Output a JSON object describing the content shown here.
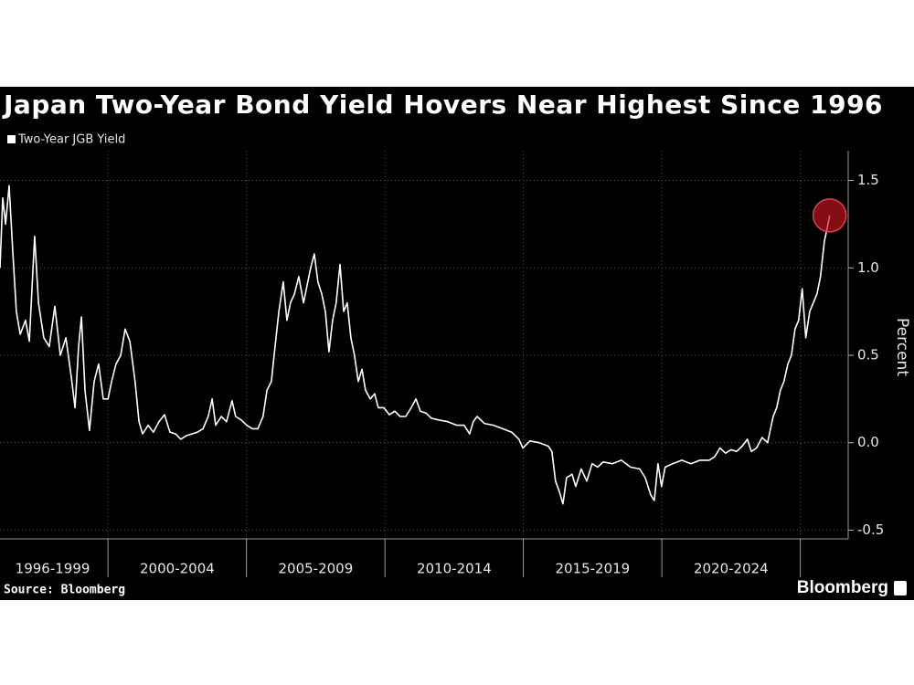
{
  "chart_data": {
    "type": "line",
    "title": "Japan Two-Year Bond Yield Hovers Near Highest Since 1996",
    "y_label": "Percent",
    "source": "Source: Bloomberg",
    "brand": "Bloomberg",
    "series": [
      {
        "name": "Two-Year JGB Yield",
        "color": "#ffffff",
        "values": [
          1.0,
          1.4,
          1.25,
          1.47,
          1.1,
          0.75,
          0.62,
          0.7,
          0.58,
          1.18,
          0.8,
          0.6,
          0.55,
          0.78,
          0.5,
          0.6,
          0.38,
          0.2,
          0.55,
          0.72,
          0.3,
          0.07,
          0.35,
          0.45,
          0.25,
          0.25,
          0.35,
          0.45,
          0.5,
          0.65,
          0.58,
          0.35,
          0.12,
          0.05,
          0.1,
          0.06,
          0.12,
          0.16,
          0.06,
          0.05,
          0.02,
          0.04,
          0.05,
          0.06,
          0.08,
          0.15,
          0.25,
          0.1,
          0.15,
          0.12,
          0.24,
          0.15,
          0.13,
          0.1,
          0.08,
          0.08,
          0.15,
          0.3,
          0.35,
          0.5,
          0.75,
          0.92,
          0.7,
          0.8,
          0.85,
          0.95,
          0.8,
          0.9,
          1.0,
          1.08,
          0.92,
          0.85,
          0.75,
          0.52,
          0.7,
          0.8,
          1.02,
          0.75,
          0.8,
          0.6,
          0.5,
          0.35,
          0.42,
          0.3,
          0.25,
          0.28,
          0.2,
          0.2,
          0.16,
          0.18,
          0.15,
          0.15,
          0.2,
          0.25,
          0.18,
          0.17,
          0.14,
          0.13,
          0.12,
          0.1,
          0.1,
          0.05,
          0.12,
          0.15,
          0.11,
          0.1,
          0.08,
          0.06,
          0.02,
          -0.03,
          0.01,
          0.0,
          -0.02,
          -0.05,
          -0.22,
          -0.28,
          -0.35,
          -0.2,
          -0.18,
          -0.25,
          -0.15,
          -0.22,
          -0.12,
          -0.14,
          -0.11,
          -0.12,
          -0.1,
          -0.14,
          -0.15,
          -0.2,
          -0.3,
          -0.33,
          -0.12,
          -0.25,
          -0.14,
          -0.12,
          -0.1,
          -0.12,
          -0.1,
          -0.1,
          -0.08,
          -0.03,
          -0.06,
          -0.04,
          -0.05,
          -0.02,
          0.02,
          -0.05,
          -0.03,
          0.03,
          0.0,
          0.15,
          0.2,
          0.3,
          0.35,
          0.45,
          0.5,
          0.65,
          0.7,
          0.88,
          0.6,
          0.75,
          0.8,
          0.85,
          0.95,
          1.15,
          1.25,
          1.3
        ]
      }
    ],
    "x": [
      1996.1,
      1996.2,
      1996.3,
      1996.43,
      1996.56,
      1996.69,
      1996.83,
      1997.02,
      1997.16,
      1997.35,
      1997.49,
      1997.68,
      1997.88,
      1998.08,
      1998.28,
      1998.48,
      1998.67,
      1998.81,
      1998.94,
      1999.04,
      1999.17,
      1999.33,
      1999.5,
      1999.66,
      1999.83,
      2000.0,
      2000.13,
      2000.29,
      2000.46,
      2000.62,
      2000.79,
      2000.98,
      2001.12,
      2001.25,
      2001.45,
      2001.64,
      2001.84,
      2002.04,
      2002.24,
      2002.44,
      2002.63,
      2002.83,
      2003.03,
      2003.23,
      2003.43,
      2003.62,
      2003.76,
      2003.89,
      2004.09,
      2004.28,
      2004.48,
      2004.61,
      2004.81,
      2005.01,
      2005.21,
      2005.41,
      2005.6,
      2005.74,
      2005.9,
      2006.0,
      2006.17,
      2006.33,
      2006.46,
      2006.59,
      2006.73,
      2006.89,
      2007.06,
      2007.19,
      2007.32,
      2007.45,
      2007.58,
      2007.72,
      2007.85,
      2007.98,
      2008.11,
      2008.24,
      2008.38,
      2008.51,
      2008.64,
      2008.77,
      2008.9,
      2009.04,
      2009.17,
      2009.3,
      2009.47,
      2009.63,
      2009.76,
      2009.96,
      2010.16,
      2010.36,
      2010.55,
      2010.75,
      2010.95,
      2011.12,
      2011.28,
      2011.48,
      2011.68,
      2011.94,
      2012.27,
      2012.6,
      2012.86,
      2013.06,
      2013.19,
      2013.33,
      2013.59,
      2013.92,
      2014.25,
      2014.58,
      2014.84,
      2014.98,
      2015.24,
      2015.57,
      2015.9,
      2016.03,
      2016.16,
      2016.3,
      2016.43,
      2016.56,
      2016.76,
      2016.89,
      2017.09,
      2017.29,
      2017.48,
      2017.68,
      2017.88,
      2018.21,
      2018.54,
      2018.87,
      2019.2,
      2019.4,
      2019.6,
      2019.73,
      2019.86,
      2019.99,
      2020.12,
      2020.39,
      2020.72,
      2021.05,
      2021.38,
      2021.71,
      2021.91,
      2022.1,
      2022.3,
      2022.5,
      2022.7,
      2022.9,
      2023.09,
      2023.23,
      2023.42,
      2023.62,
      2023.82,
      2024.02,
      2024.15,
      2024.28,
      2024.41,
      2024.55,
      2024.68,
      2024.81,
      2024.94,
      2025.07,
      2025.2,
      2025.34,
      2025.47,
      2025.6,
      2025.73,
      2025.87,
      2026.0,
      2026.06
    ],
    "xlim": [
      1996.1,
      2026.73
    ],
    "xticks": [
      2000,
      2005,
      2010,
      2015,
      2020,
      2025
    ],
    "period_labels": [
      {
        "label": "1996-1999",
        "from": 1996,
        "to": 2000
      },
      {
        "label": "2000-2004",
        "from": 2000,
        "to": 2005
      },
      {
        "label": "2005-2009",
        "from": 2005,
        "to": 2010
      },
      {
        "label": "2010-2014",
        "from": 2010,
        "to": 2015
      },
      {
        "label": "2015-2019",
        "from": 2015,
        "to": 2020
      },
      {
        "label": "2020-2024",
        "from": 2020,
        "to": 2025
      }
    ],
    "ylim": [
      -0.55,
      1.67
    ],
    "yticks": [
      1.5,
      {
        "value": 1.0,
        "label": "1.0"
      },
      0.5,
      {
        "value": 0.0,
        "label": "0.0"
      },
      -0.5
    ],
    "grid": true
  }
}
